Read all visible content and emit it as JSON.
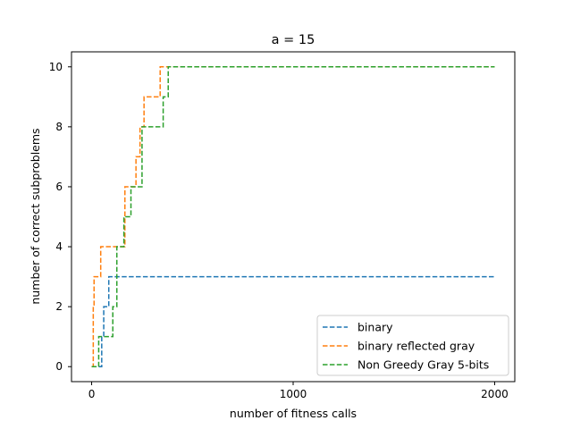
{
  "chart_data": {
    "type": "line",
    "title": "a = 15",
    "xlabel": "number of fitness calls",
    "ylabel": "number of correct subproblems",
    "xlim": [
      -100,
      2100
    ],
    "ylim": [
      -0.5,
      10.5
    ],
    "xticks": [
      0,
      1000,
      2000
    ],
    "yticks": [
      0,
      2,
      4,
      6,
      8,
      10
    ],
    "grid": false,
    "legend_position": "lower-right",
    "line_style": "dashed",
    "step": "post",
    "series": [
      {
        "name": "binary",
        "color": "#1f77b4",
        "points": [
          [
            0,
            0
          ],
          [
            50,
            0
          ],
          [
            50,
            1
          ],
          [
            60,
            1
          ],
          [
            60,
            2
          ],
          [
            85,
            2
          ],
          [
            85,
            3
          ],
          [
            2000,
            3
          ]
        ]
      },
      {
        "name": "binary reflected gray",
        "color": "#ff7f0e",
        "points": [
          [
            0,
            0
          ],
          [
            8,
            0
          ],
          [
            8,
            2
          ],
          [
            12,
            2
          ],
          [
            12,
            3
          ],
          [
            45,
            3
          ],
          [
            45,
            4
          ],
          [
            165,
            4
          ],
          [
            165,
            6
          ],
          [
            220,
            6
          ],
          [
            220,
            7
          ],
          [
            240,
            7
          ],
          [
            240,
            8
          ],
          [
            260,
            8
          ],
          [
            260,
            9
          ],
          [
            340,
            9
          ],
          [
            340,
            10
          ],
          [
            2000,
            10
          ]
        ]
      },
      {
        "name": "Non Greedy Gray 5-bits",
        "color": "#2ca02c",
        "points": [
          [
            0,
            0
          ],
          [
            35,
            0
          ],
          [
            35,
            1
          ],
          [
            105,
            1
          ],
          [
            105,
            2
          ],
          [
            125,
            2
          ],
          [
            125,
            4
          ],
          [
            160,
            4
          ],
          [
            160,
            5
          ],
          [
            195,
            5
          ],
          [
            195,
            6
          ],
          [
            250,
            6
          ],
          [
            250,
            8
          ],
          [
            355,
            8
          ],
          [
            355,
            9
          ],
          [
            380,
            9
          ],
          [
            380,
            10
          ],
          [
            2000,
            10
          ]
        ]
      }
    ]
  }
}
